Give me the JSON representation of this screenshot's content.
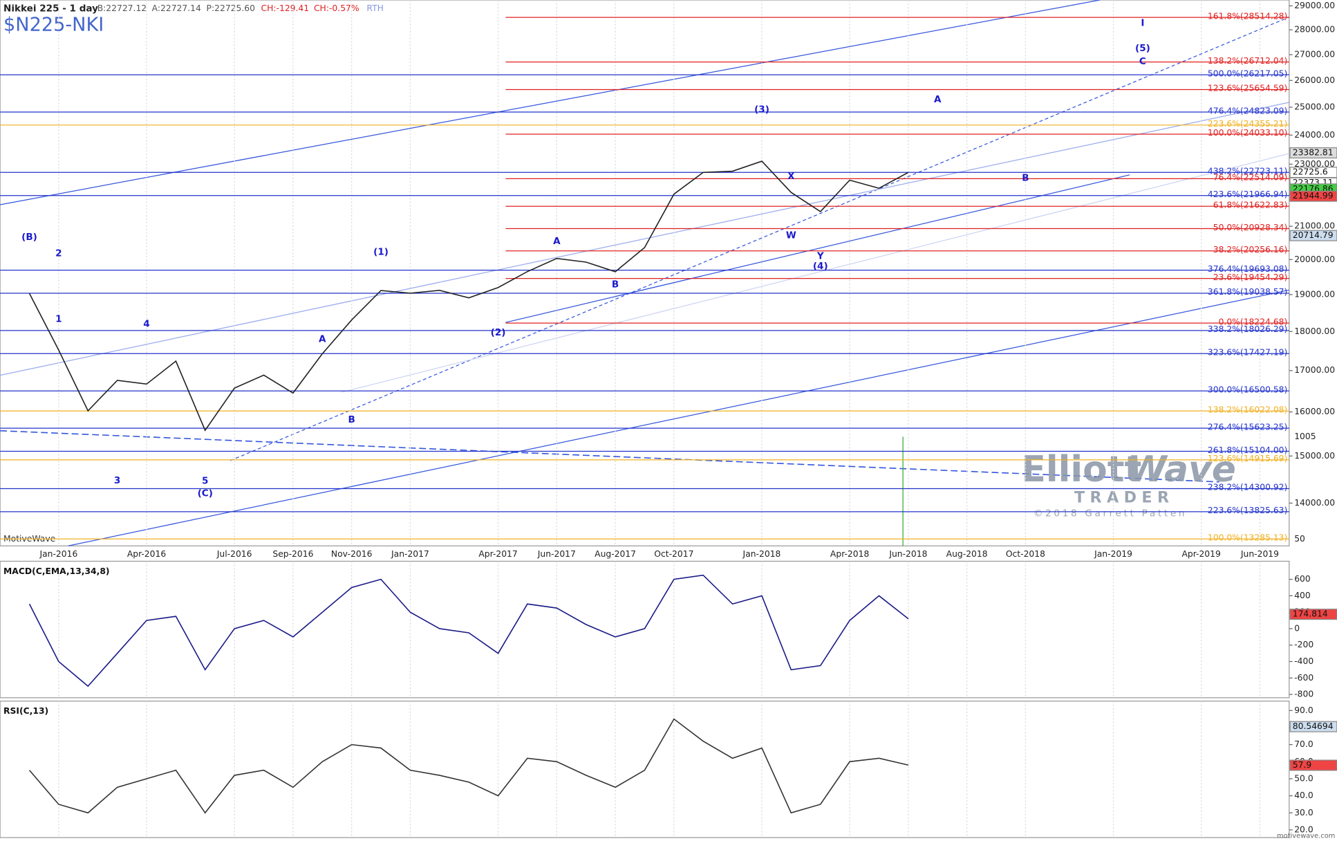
{
  "header": {
    "instrument": "Nikkei 225 - 1 day",
    "bid": "B:22727.12",
    "ask": "A:22727.14",
    "price": "P:22725.60",
    "change": "CH:-129.41",
    "change_pct": "CH:-0.57%",
    "session": "RTH",
    "symbol": "$N225-NKI",
    "platform": "MotiveWave",
    "footer": "motivewave.com"
  },
  "watermark": {
    "line1a": "Elliott",
    "line1b": "Wave",
    "line2": "TRADER",
    "line3": "©2018 Garrett Patten"
  },
  "chart_data": [
    {
      "type": "line",
      "log_scale": true,
      "color": "#222222",
      "x": [
        "Dec-2015",
        "Jan-2016",
        "Feb-2016",
        "Mar-2016",
        "Apr-2016",
        "May-2016",
        "Jun-2016",
        "Jul-2016",
        "Aug-2016",
        "Sep-2016",
        "Oct-2016",
        "Nov-2016",
        "Dec-2016",
        "Jan-2017",
        "Feb-2017",
        "Mar-2017",
        "Apr-2017",
        "May-2017",
        "Jun-2017",
        "Jul-2017",
        "Aug-2017",
        "Sep-2017",
        "Oct-2017",
        "Nov-2017",
        "Dec-2017",
        "Jan-2018",
        "Feb-2018",
        "Mar-2018",
        "Apr-2018",
        "May-2018",
        "Jun-2018"
      ],
      "values": [
        19034,
        17518,
        16027,
        16759,
        16666,
        17235,
        15576,
        16569,
        16887,
        16450,
        17425,
        18308,
        19114,
        19041,
        19119,
        18909,
        19197,
        19651,
        20033,
        19925,
        19646,
        20356,
        22012,
        22725,
        22765,
        23098,
        22068,
        21454,
        22468,
        22202,
        22725
      ],
      "xlim": [
        "Nov-2015",
        "Jul-2019"
      ],
      "xticks": [
        "Jan-2016",
        "Apr-2016",
        "Jul-2016",
        "Sep-2016",
        "Nov-2016",
        "Jan-2017",
        "Apr-2017",
        "Jun-2017",
        "Aug-2017",
        "Oct-2017",
        "Jan-2018",
        "Apr-2018",
        "Jun-2018",
        "Aug-2018",
        "Oct-2018",
        "Jan-2019",
        "Apr-2019",
        "Jun-2019"
      ],
      "ylim": [
        13150,
        29250
      ],
      "yticks": [
        {
          "value": 29000,
          "label": "29000.00"
        },
        {
          "value": 28000,
          "label": "28000.00"
        },
        {
          "value": 27000,
          "label": "27000.00"
        },
        {
          "value": 26000,
          "label": "26000.00"
        },
        {
          "value": 25000,
          "label": "25000.00"
        },
        {
          "value": 24000,
          "label": "24000.00"
        },
        {
          "value": 23000,
          "label": "23000.00"
        },
        {
          "value": 22000,
          "label": "22000.00"
        },
        {
          "value": 21000,
          "label": "21000.00"
        },
        {
          "value": 20000,
          "label": "20000.00"
        },
        {
          "value": 19000,
          "label": "19000.00"
        },
        {
          "value": 18000,
          "label": "18000.00"
        },
        {
          "value": 17000,
          "label": "17000.00"
        },
        {
          "value": 16000,
          "label": "16000.00"
        },
        {
          "value": 15000,
          "label": "15000.00"
        },
        {
          "value": 14000,
          "label": "14000.00"
        }
      ],
      "levels": [
        {
          "label": "161.8%(28514.28)",
          "value": 28514.28,
          "color": "#e02020"
        },
        {
          "label": "138.2%(26712.04)",
          "value": 26712.04,
          "color": "#e02020"
        },
        {
          "label": "500.0%(26217.05)",
          "value": 26217.05,
          "color": "#2233cc"
        },
        {
          "label": "123.6%(25654.59)",
          "value": 25654.59,
          "color": "#e02020"
        },
        {
          "label": "476.4%(24823.09)",
          "value": 24823.09,
          "color": "#2233cc"
        },
        {
          "label": "223.6%(24355.21)",
          "value": 24355.21,
          "color": "#f0b020"
        },
        {
          "label": "100.0%(24033.10)",
          "value": 24033.1,
          "color": "#e02020"
        },
        {
          "label": "438.2%(22723.11)",
          "value": 22723.11,
          "color": "#2233cc"
        },
        {
          "label": "76.4%(22514.09)",
          "value": 22514.09,
          "color": "#e02020"
        },
        {
          "label": "423.6%(21966.94)",
          "value": 21966.94,
          "color": "#2233cc"
        },
        {
          "label": "61.8%(21622.83)",
          "value": 21622.83,
          "color": "#e02020"
        },
        {
          "label": "50.0%(20928.34)",
          "value": 20928.34,
          "color": "#e02020"
        },
        {
          "label": "38.2%(20256.16)",
          "value": 20256.16,
          "color": "#e02020"
        },
        {
          "label": "376.4%(19693.08)",
          "value": 19693.08,
          "color": "#2233cc"
        },
        {
          "label": "23.6%(19454.29)",
          "value": 19454.29,
          "color": "#e02020"
        },
        {
          "label": "361.8%(19038.57)",
          "value": 19038.57,
          "color": "#2233cc"
        },
        {
          "label": "0.0%(18224.68)",
          "value": 18224.68,
          "color": "#e02020"
        },
        {
          "label": "338.2%(18026.29)",
          "value": 18026.29,
          "color": "#2233cc"
        },
        {
          "label": "323.6%(17427.19)",
          "value": 17427.19,
          "color": "#2233cc"
        },
        {
          "label": "300.0%(16500.58)",
          "value": 16500.58,
          "color": "#2233cc"
        },
        {
          "label": "138.2%(16022.08)",
          "value": 16022.08,
          "color": "#f0b020"
        },
        {
          "label": "276.4%(15623.25)",
          "value": 15623.25,
          "color": "#2233cc"
        },
        {
          "label": "261.8%(15104.00)",
          "value": 15104.0,
          "color": "#2233cc"
        },
        {
          "label": "123.6%(14915.69)",
          "value": 14915.69,
          "color": "#f0b020"
        },
        {
          "label": "238.2%(14300.92)",
          "value": 14300.92,
          "color": "#2233cc"
        },
        {
          "label": "223.6%(13825.63)",
          "value": 13825.63,
          "color": "#2233cc"
        },
        {
          "label": "100.0%(13285.13)",
          "value": 13285.13,
          "color": "#f0b020"
        }
      ],
      "annotations": [
        {
          "text": "(B)",
          "x": "Dec-2015",
          "y": 20670
        },
        {
          "text": "2",
          "x": "Jan-2016",
          "y": 20180
        },
        {
          "text": "1",
          "x": "Jan-2016",
          "y": 18330
        },
        {
          "text": "3",
          "x": "Mar-2016",
          "y": 14470
        },
        {
          "text": "4",
          "x": "Apr-2016",
          "y": 18200
        },
        {
          "text": "5",
          "x": "Jun-2016",
          "y": 14460
        },
        {
          "text": "(C)",
          "x": "Jun-2016",
          "y": 14200
        },
        {
          "text": "A",
          "x": "Oct-2016",
          "y": 17800
        },
        {
          "text": "B",
          "x": "Nov-2016",
          "y": 15820
        },
        {
          "text": "(1)",
          "x": "Dec-2016",
          "y": 20220
        },
        {
          "text": "(2)",
          "x": "Apr-2017",
          "y": 17970
        },
        {
          "text": "A",
          "x": "Jun-2017",
          "y": 20540
        },
        {
          "text": "B",
          "x": "Aug-2017",
          "y": 19280
        },
        {
          "text": "(3)",
          "x": "Jan-2018",
          "y": 24910
        },
        {
          "text": "W",
          "x": "Feb-2018",
          "y": 20720
        },
        {
          "text": "X",
          "x": "Feb-2018",
          "y": 22590
        },
        {
          "text": "Y",
          "x": "Mar-2018",
          "y": 20100
        },
        {
          "text": "(4)",
          "x": "Mar-2018",
          "y": 19800
        },
        {
          "text": "A",
          "x": "Jul-2018",
          "y": 25280
        },
        {
          "text": "B",
          "x": "Oct-2018",
          "y": 22540
        },
        {
          "text": "I",
          "x": "Feb-2019",
          "y": 28280
        },
        {
          "text": "(5)",
          "x": "Feb-2019",
          "y": 27250
        },
        {
          "text": "C",
          "x": "Feb-2019",
          "y": 26730
        }
      ],
      "price_tags": [
        {
          "value": 23382.81,
          "color": "#dddddd"
        },
        {
          "value": 22725.6,
          "color": "#ffffff"
        },
        {
          "value": 22373.11,
          "color": "#ffffff"
        },
        {
          "value": 22176.86,
          "color": "#44cc44"
        },
        {
          "value": 21944.99,
          "color": "#ee4444"
        },
        {
          "value": 20714.79,
          "color": "#ccddee"
        }
      ],
      "volume_labels": [
        "1005",
        "50"
      ]
    },
    {
      "type": "line",
      "title": "MACD(C,EMA,13,34,8)",
      "color": "#1a1a88",
      "values": [
        300,
        -400,
        -700,
        -300,
        100,
        150,
        -500,
        0,
        100,
        -100,
        200,
        500,
        600,
        200,
        0,
        -50,
        -300,
        300,
        250,
        50,
        -100,
        0,
        600,
        650,
        300,
        400,
        -500,
        -450,
        100,
        400,
        120
      ],
      "ylim": [
        -840,
        820
      ],
      "yticks": [
        600,
        400,
        200,
        0,
        -200,
        -400,
        -600,
        -800
      ],
      "value_tags": [
        {
          "value": 174.814,
          "color": "#ee4444"
        }
      ]
    },
    {
      "type": "line",
      "title": "RSI(C,13)",
      "color": "#333333",
      "values": [
        55,
        35,
        30,
        45,
        50,
        55,
        30,
        52,
        55,
        45,
        60,
        70,
        68,
        55,
        52,
        48,
        40,
        62,
        60,
        52,
        45,
        55,
        85,
        72,
        62,
        68,
        30,
        35,
        60,
        62,
        58
      ],
      "ylim": [
        15.5,
        95.5
      ],
      "yticks": [
        {
          "value": 90,
          "label": "90.0"
        },
        {
          "value": 80,
          "label": "80.0"
        },
        {
          "value": 70,
          "label": "70.0"
        },
        {
          "value": 60,
          "label": "60.0"
        },
        {
          "value": 50,
          "label": "50.0"
        },
        {
          "value": 40,
          "label": "40.0"
        },
        {
          "value": 30,
          "label": "30.0"
        },
        {
          "value": 20,
          "label": "20.0"
        }
      ],
      "value_tags": [
        {
          "value": 80.54694,
          "color": "#ccddee"
        },
        {
          "value": 57.9,
          "color": "#ee4444"
        }
      ]
    }
  ]
}
